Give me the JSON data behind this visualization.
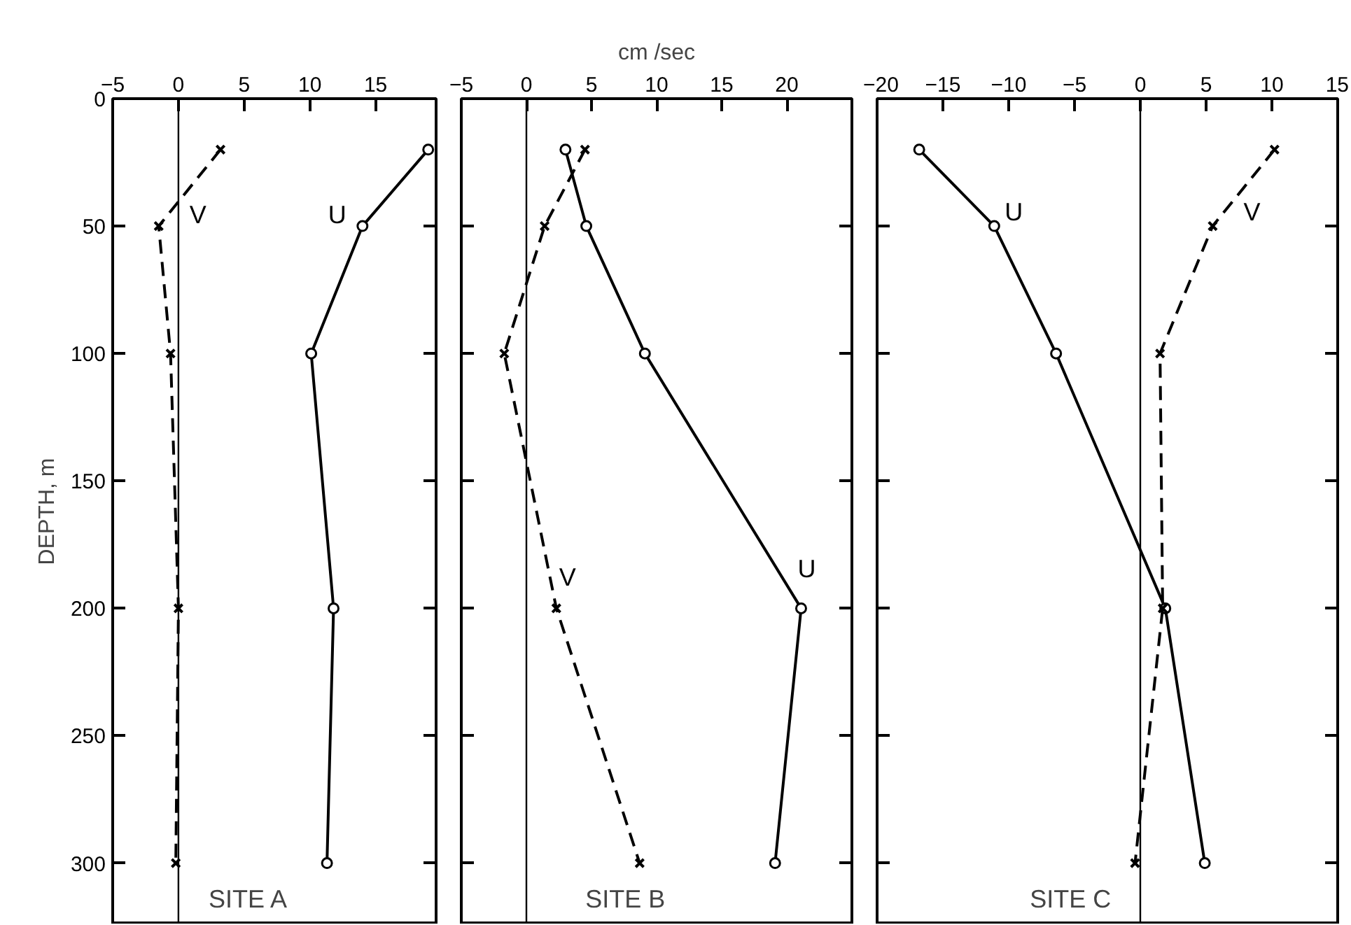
{
  "chart_data": [
    {
      "type": "line",
      "ylabel": "DEPTH, m",
      "xlim": [
        -5,
        19.6
      ],
      "ylim": [
        324,
        0
      ],
      "xticks": [
        -5,
        0,
        5,
        10,
        15
      ],
      "yticks": [
        0,
        50,
        100,
        150,
        200,
        250,
        300
      ],
      "grid": false,
      "series": [
        {
          "name": "U",
          "color": "#000000",
          "marker": "circle",
          "line_style": "solid",
          "x": [
            19.0,
            14.0,
            10.1,
            11.8,
            11.3
          ],
          "values": [
            20,
            50,
            100,
            200,
            300
          ]
        },
        {
          "name": "V",
          "color": "#000000",
          "marker": "cross",
          "line_style": "dashed",
          "x": [
            3.2,
            -1.5,
            -0.6,
            0,
            -0.2
          ],
          "values": [
            20,
            50,
            100,
            200,
            300
          ]
        }
      ],
      "ref_lines": [
        {
          "axis": "x",
          "value": 0,
          "color": "#000000"
        }
      ],
      "annotations": [
        "SITE A"
      ]
    },
    {
      "type": "line",
      "xlabel": "cm /sec",
      "xlim": [
        -5,
        25
      ],
      "ylim": [
        324,
        0
      ],
      "xticks": [
        -5,
        0,
        5,
        10,
        15,
        20
      ],
      "yticks": [
        0,
        50,
        100,
        150,
        200,
        250,
        300
      ],
      "grid": false,
      "tick_labels": "x",
      "series": [
        {
          "name": "U",
          "color": "#000000",
          "marker": "circle",
          "line_style": "solid",
          "x": [
            3.0,
            4.6,
            9.1,
            21.1,
            19.1
          ],
          "values": [
            20,
            50,
            100,
            200,
            300
          ]
        },
        {
          "name": "V",
          "color": "#000000",
          "marker": "cross",
          "line_style": "dashed",
          "x": [
            4.5,
            1.4,
            -1.7,
            2.3,
            8.7
          ],
          "values": [
            20,
            50,
            100,
            200,
            300
          ]
        }
      ],
      "ref_lines": [
        {
          "axis": "x",
          "value": 0,
          "color": "#000000"
        }
      ],
      "annotations": [
        "SITE B"
      ]
    },
    {
      "type": "line",
      "xlim": [
        -20,
        15
      ],
      "ylim": [
        324,
        0
      ],
      "xticks": [
        -20,
        -15,
        -10,
        -5,
        0,
        5,
        10,
        15
      ],
      "yticks": [
        0,
        50,
        100,
        150,
        200,
        250,
        300
      ],
      "grid": false,
      "tick_labels": "x",
      "series": [
        {
          "name": "U",
          "color": "#000000",
          "marker": "circle",
          "line_style": "solid",
          "x": [
            -16.8,
            -11.1,
            -6.4,
            1.9,
            4.9
          ],
          "values": [
            20,
            50,
            100,
            200,
            300
          ]
        },
        {
          "name": "V",
          "color": "#000000",
          "marker": "cross",
          "line_style": "dashed",
          "x": [
            10.2,
            5.5,
            1.5,
            1.7,
            -0.4
          ],
          "values": [
            20,
            50,
            100,
            200,
            300
          ]
        }
      ],
      "ref_lines": [
        {
          "axis": "x",
          "value": 0,
          "color": "#000000"
        }
      ],
      "annotations": [
        "SITE C"
      ]
    }
  ]
}
